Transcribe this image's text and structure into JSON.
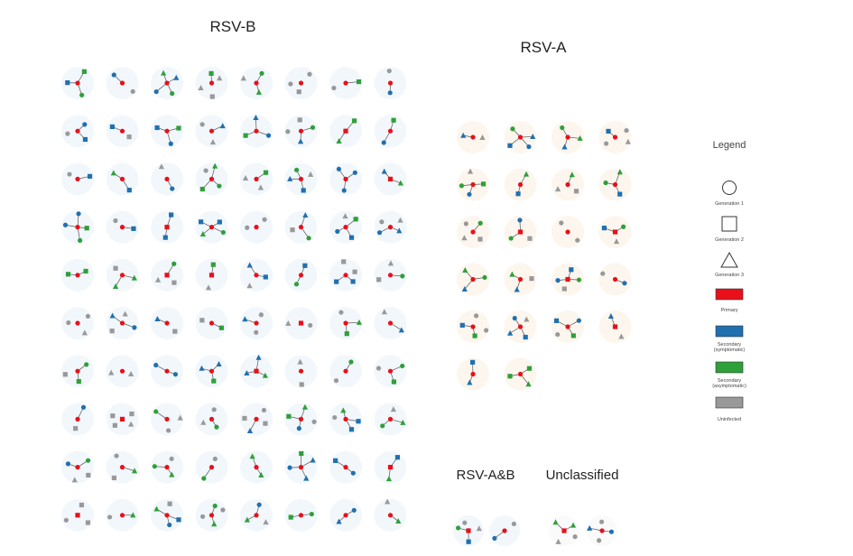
{
  "sections": {
    "rsv_b": {
      "title": "RSV-B",
      "rows": 10,
      "cols": 8
    },
    "rsv_a": {
      "title": "RSV-A",
      "count": 22,
      "cols": 4
    },
    "rsv_ab": {
      "title": "RSV-A&B",
      "count": 2
    },
    "unclassified": {
      "title": "Unclassified",
      "count": 2
    }
  },
  "legend": {
    "title": "Legend",
    "shapes": [
      {
        "shape": "circle",
        "label": "Generation 1"
      },
      {
        "shape": "square",
        "label": "Generation 2"
      },
      {
        "shape": "triangle",
        "label": "Generation 3"
      }
    ],
    "colors": [
      {
        "color": "#e8101a",
        "label": "Primary"
      },
      {
        "color": "#2070b0",
        "label": "Secondary (symptomatic)"
      },
      {
        "color": "#2ea039",
        "label": "Secondary (asymptomatic)"
      },
      {
        "color": "#999999",
        "label": "Uninfected"
      }
    ]
  },
  "colors": {
    "primary": "#e8101a",
    "symptomatic": "#2070b0",
    "asymptomatic": "#2ea039",
    "uninfected": "#999999",
    "rsv_b_halo": "#f2f7fc",
    "rsv_a_halo": "#fcf6ee",
    "edge": "#555555"
  }
}
